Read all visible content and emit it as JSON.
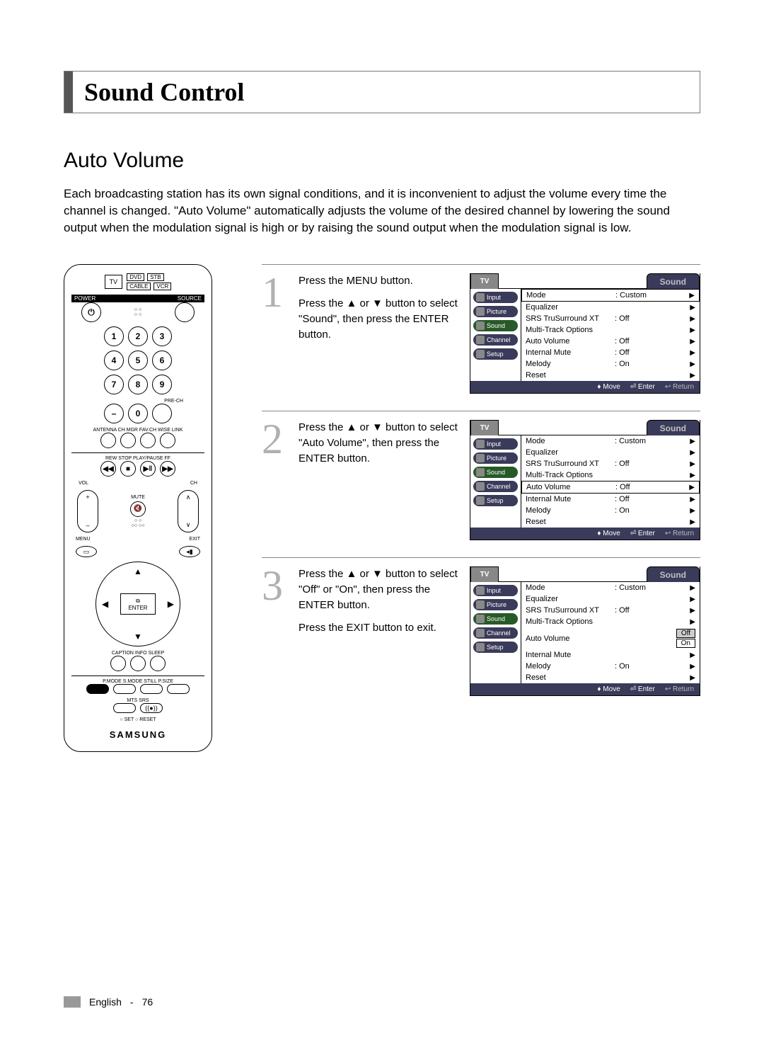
{
  "title": "Sound Control",
  "section": "Auto Volume",
  "intro": "Each broadcasting station has its own signal conditions, and it is inconvenient to adjust the volume every time the channel is changed. \"Auto Volume\" automatically adjusts the volume of the desired channel by lowering the sound output when the modulation signal is high or by raising the sound output when the modulation signal is low.",
  "remote": {
    "top_tv": "TV",
    "top_labels": [
      "DVD",
      "STB",
      "CABLE",
      "VCR"
    ],
    "power_strip_left": "POWER",
    "power_strip_right": "SOURCE",
    "numpad": [
      "1",
      "2",
      "3",
      "4",
      "5",
      "6",
      "7",
      "8",
      "9",
      "–",
      "0"
    ],
    "pre_ch": "PRE-CH",
    "row_under": "ANTENNA  CH MGR  FAV.CH  WISE LINK",
    "transport": "REW   STOP   PLAY/PAUSE   FF",
    "vol": "VOL",
    "ch": "CH",
    "mute": "MUTE",
    "menu": "MENU",
    "exit": "EXIT",
    "enter_top": "⧉",
    "enter": "ENTER",
    "row_cis": "CAPTION   INFO   SLEEP",
    "row_psmall": "P.MODE  S.MODE  STILL  P.SIZE",
    "row_mts": "MTS   SRS",
    "row_setreset": "○ SET   ○ RESET",
    "brand": "SAMSUNG"
  },
  "steps": [
    {
      "num": "1",
      "text": "Press the MENU button.\nPress the ▲ or ▼ button to select \"Sound\", then press the ENTER button.",
      "menu": {
        "title": "Sound",
        "selected_row": "Mode",
        "rows": [
          {
            "label": "Mode",
            "val": ": Custom",
            "sel": true
          },
          {
            "label": "Equalizer",
            "val": ""
          },
          {
            "label": "SRS TruSurround XT",
            "val": ": Off"
          },
          {
            "label": "Multi-Track Options",
            "val": ""
          },
          {
            "label": "Auto Volume",
            "val": ": Off"
          },
          {
            "label": "Internal Mute",
            "val": ": Off"
          },
          {
            "label": "Melody",
            "val": ": On"
          },
          {
            "label": "Reset",
            "val": ""
          }
        ],
        "footer": [
          "Move",
          "Enter",
          "Return"
        ],
        "footer_dim": 2
      }
    },
    {
      "num": "2",
      "text": "Press the ▲ or ▼ button to select \"Auto Volume\", then press the ENTER button.",
      "menu": {
        "title": "Sound",
        "selected_row": "Auto Volume",
        "rows": [
          {
            "label": "Mode",
            "val": ": Custom"
          },
          {
            "label": "Equalizer",
            "val": ""
          },
          {
            "label": "SRS TruSurround XT",
            "val": ": Off"
          },
          {
            "label": "Multi-Track Options",
            "val": ""
          },
          {
            "label": "Auto Volume",
            "val": ": Off",
            "sel": true
          },
          {
            "label": "Internal Mute",
            "val": ": Off"
          },
          {
            "label": "Melody",
            "val": ": On"
          },
          {
            "label": "Reset",
            "val": ""
          }
        ],
        "footer": [
          "Move",
          "Enter",
          "Return"
        ],
        "footer_dim": 2
      }
    },
    {
      "num": "3",
      "text": "Press the ▲ or ▼ button to select \"Off\" or \"On\", then press the ENTER button.",
      "text2": "Press the EXIT button to exit.",
      "menu": {
        "title": "Sound",
        "options_row": "Auto Volume",
        "rows": [
          {
            "label": "Mode",
            "val": ": Custom"
          },
          {
            "label": "Equalizer",
            "val": ""
          },
          {
            "label": "SRS TruSurround XT",
            "val": ": Off"
          },
          {
            "label": "Multi-Track Options",
            "val": ""
          },
          {
            "label": "Auto Volume",
            "opts": [
              "Off",
              "On"
            ],
            "sel_opt": 0
          },
          {
            "label": "Internal Mute",
            "val": ""
          },
          {
            "label": "Melody",
            "val": ": On"
          },
          {
            "label": "Reset",
            "val": ""
          }
        ],
        "footer": [
          "Move",
          "Enter",
          "Return"
        ],
        "footer_dim": 2
      }
    }
  ],
  "osd_side": [
    {
      "label": "Input"
    },
    {
      "label": "Picture"
    },
    {
      "label": "Sound",
      "active": true
    },
    {
      "label": "Channel"
    },
    {
      "label": "Setup"
    }
  ],
  "osd_tv": "TV",
  "footer": {
    "lang": "English",
    "page": "76"
  },
  "colors": {
    "title_accent": "#555555",
    "step_num": "#b0b0b0",
    "osd_header": "#3a3a5a",
    "osd_active": "#285a28"
  }
}
